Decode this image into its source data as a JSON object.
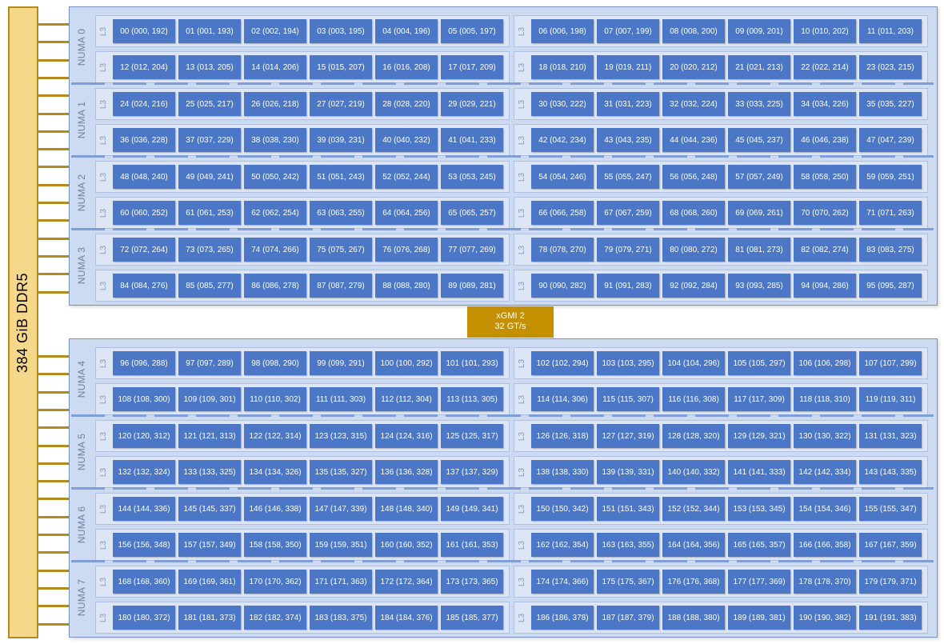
{
  "memory": {
    "label": "384 GiB DDR5"
  },
  "interconnect": {
    "line1": "xGMI 2",
    "line2": "32 GT/s"
  },
  "numa_prefix": "NUMA",
  "cache_label": "L3",
  "layout": {
    "numa_per_socket": 4,
    "ccx_per_numa": 4,
    "cores_per_ccx": 6,
    "total_cores": 192,
    "logical_offset": 192
  },
  "colors": {
    "memory_fill": "#f5d889",
    "wire": "#b38a1e",
    "socket_fill": "#ccdaf2",
    "core_fill": "#4b77c6",
    "interconnect_fill": "#c48f00"
  },
  "sockets": [
    {
      "numa": [
        0,
        1,
        2,
        3
      ]
    },
    {
      "numa": [
        4,
        5,
        6,
        7
      ]
    }
  ]
}
